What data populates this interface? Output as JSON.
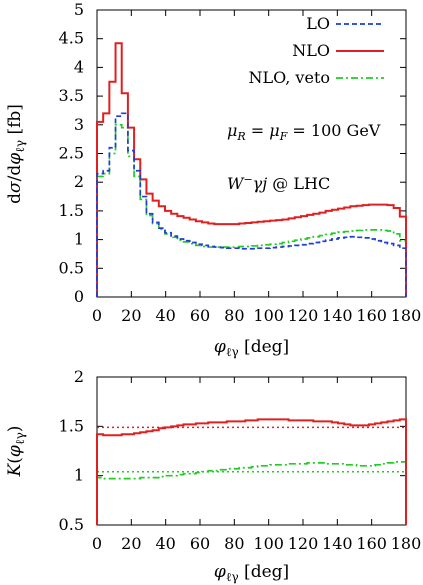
{
  "chart_data": [
    {
      "type": "line",
      "step": true,
      "xlabel": "φℓγ [deg]",
      "ylabel": "dσ/dφℓγ [fb]",
      "xlim": [
        0,
        180
      ],
      "ylim": [
        0,
        5
      ],
      "xticks": [
        0,
        20,
        40,
        60,
        80,
        100,
        120,
        140,
        160,
        180
      ],
      "yticks": [
        0,
        0.5,
        1,
        1.5,
        2,
        2.5,
        3,
        3.5,
        4,
        4.5,
        5
      ],
      "xtick_labels": [
        "0",
        "20",
        "40",
        "60",
        "80",
        "100",
        "120",
        "140",
        "160",
        "180"
      ],
      "ytick_labels": [
        "0",
        "0.5",
        "1",
        "1.5",
        "2",
        "2.5",
        "3",
        "3.5",
        "4",
        "4.5",
        "5"
      ],
      "bin_width": 3.6,
      "legend_position": "top-right",
      "annotations": [
        "μR = μF = 100 GeV",
        "W−γj @ LHC"
      ],
      "series": [
        {
          "name": "LO",
          "color": "#1f3fd1",
          "dash": "dashed",
          "values": [
            2.15,
            2.2,
            2.6,
            3.15,
            3.2,
            2.55,
            2.2,
            1.75,
            1.45,
            1.3,
            1.2,
            1.12,
            1.06,
            1.01,
            0.98,
            0.95,
            0.92,
            0.9,
            0.88,
            0.87,
            0.86,
            0.85,
            0.85,
            0.84,
            0.84,
            0.84,
            0.85,
            0.85,
            0.86,
            0.87,
            0.88,
            0.89,
            0.9,
            0.91,
            0.93,
            0.95,
            0.97,
            0.99,
            1.01,
            1.03,
            1.04,
            1.05,
            1.04,
            1.03,
            1.01,
            0.98,
            0.95,
            0.93,
            0.9,
            0.85
          ]
        },
        {
          "name": "NLO",
          "color": "#e02020",
          "dash": "solid",
          "values": [
            3.05,
            3.2,
            3.75,
            4.42,
            3.55,
            2.95,
            2.4,
            2.05,
            1.8,
            1.68,
            1.58,
            1.5,
            1.45,
            1.41,
            1.38,
            1.35,
            1.32,
            1.3,
            1.28,
            1.27,
            1.27,
            1.27,
            1.27,
            1.28,
            1.29,
            1.3,
            1.31,
            1.32,
            1.33,
            1.34,
            1.35,
            1.37,
            1.39,
            1.41,
            1.43,
            1.45,
            1.47,
            1.5,
            1.52,
            1.54,
            1.56,
            1.58,
            1.59,
            1.6,
            1.61,
            1.61,
            1.61,
            1.6,
            1.55,
            1.4
          ]
        },
        {
          "name": "NLO, veto",
          "color": "#22cc22",
          "dash": "dash-dot",
          "values": [
            2.1,
            2.15,
            2.5,
            3.0,
            2.95,
            2.45,
            2.1,
            1.7,
            1.42,
            1.28,
            1.18,
            1.1,
            1.04,
            0.99,
            0.96,
            0.93,
            0.9,
            0.88,
            0.87,
            0.87,
            0.87,
            0.87,
            0.87,
            0.88,
            0.88,
            0.89,
            0.9,
            0.91,
            0.92,
            0.93,
            0.95,
            0.97,
            0.99,
            1.01,
            1.03,
            1.05,
            1.07,
            1.09,
            1.11,
            1.13,
            1.14,
            1.15,
            1.16,
            1.17,
            1.17,
            1.17,
            1.16,
            1.15,
            1.1,
            0.98
          ]
        }
      ]
    },
    {
      "type": "line",
      "step": true,
      "xlabel": "φℓγ [deg]",
      "ylabel": "K(φℓγ)",
      "xlim": [
        0,
        180
      ],
      "ylim": [
        0.5,
        2
      ],
      "xticks": [
        0,
        20,
        40,
        60,
        80,
        100,
        120,
        140,
        160,
        180
      ],
      "yticks": [
        0.5,
        1,
        1.5,
        2
      ],
      "xtick_labels": [
        "0",
        "20",
        "40",
        "60",
        "80",
        "100",
        "120",
        "140",
        "160",
        "180"
      ],
      "ytick_labels": [
        "0.5",
        "1",
        "1.5",
        "2"
      ],
      "bin_width": 3.6,
      "reference_lines": [
        {
          "y": 1.49,
          "color": "#e02020",
          "dash": "dotted"
        },
        {
          "y": 1.04,
          "color": "#22cc22",
          "dash": "dotted"
        }
      ],
      "series": [
        {
          "color": "#e02020",
          "dash": "solid",
          "values": [
            1.42,
            1.41,
            1.41,
            1.41,
            1.42,
            1.42,
            1.43,
            1.44,
            1.45,
            1.46,
            1.48,
            1.49,
            1.5,
            1.51,
            1.52,
            1.52,
            1.53,
            1.53,
            1.54,
            1.54,
            1.54,
            1.55,
            1.55,
            1.55,
            1.56,
            1.56,
            1.57,
            1.57,
            1.57,
            1.57,
            1.57,
            1.56,
            1.56,
            1.56,
            1.56,
            1.55,
            1.55,
            1.55,
            1.54,
            1.53,
            1.52,
            1.51,
            1.51,
            1.51,
            1.52,
            1.53,
            1.54,
            1.55,
            1.56,
            1.57
          ]
        },
        {
          "color": "#22cc22",
          "dash": "dash-dot",
          "values": [
            0.98,
            0.97,
            0.97,
            0.97,
            0.97,
            0.97,
            0.97,
            0.98,
            0.98,
            0.98,
            0.99,
            1.0,
            1.0,
            1.01,
            1.02,
            1.02,
            1.03,
            1.04,
            1.05,
            1.05,
            1.06,
            1.07,
            1.07,
            1.08,
            1.08,
            1.09,
            1.1,
            1.1,
            1.11,
            1.11,
            1.11,
            1.12,
            1.12,
            1.12,
            1.13,
            1.13,
            1.13,
            1.12,
            1.12,
            1.12,
            1.11,
            1.11,
            1.1,
            1.1,
            1.1,
            1.11,
            1.12,
            1.13,
            1.14,
            1.14
          ]
        }
      ]
    }
  ]
}
